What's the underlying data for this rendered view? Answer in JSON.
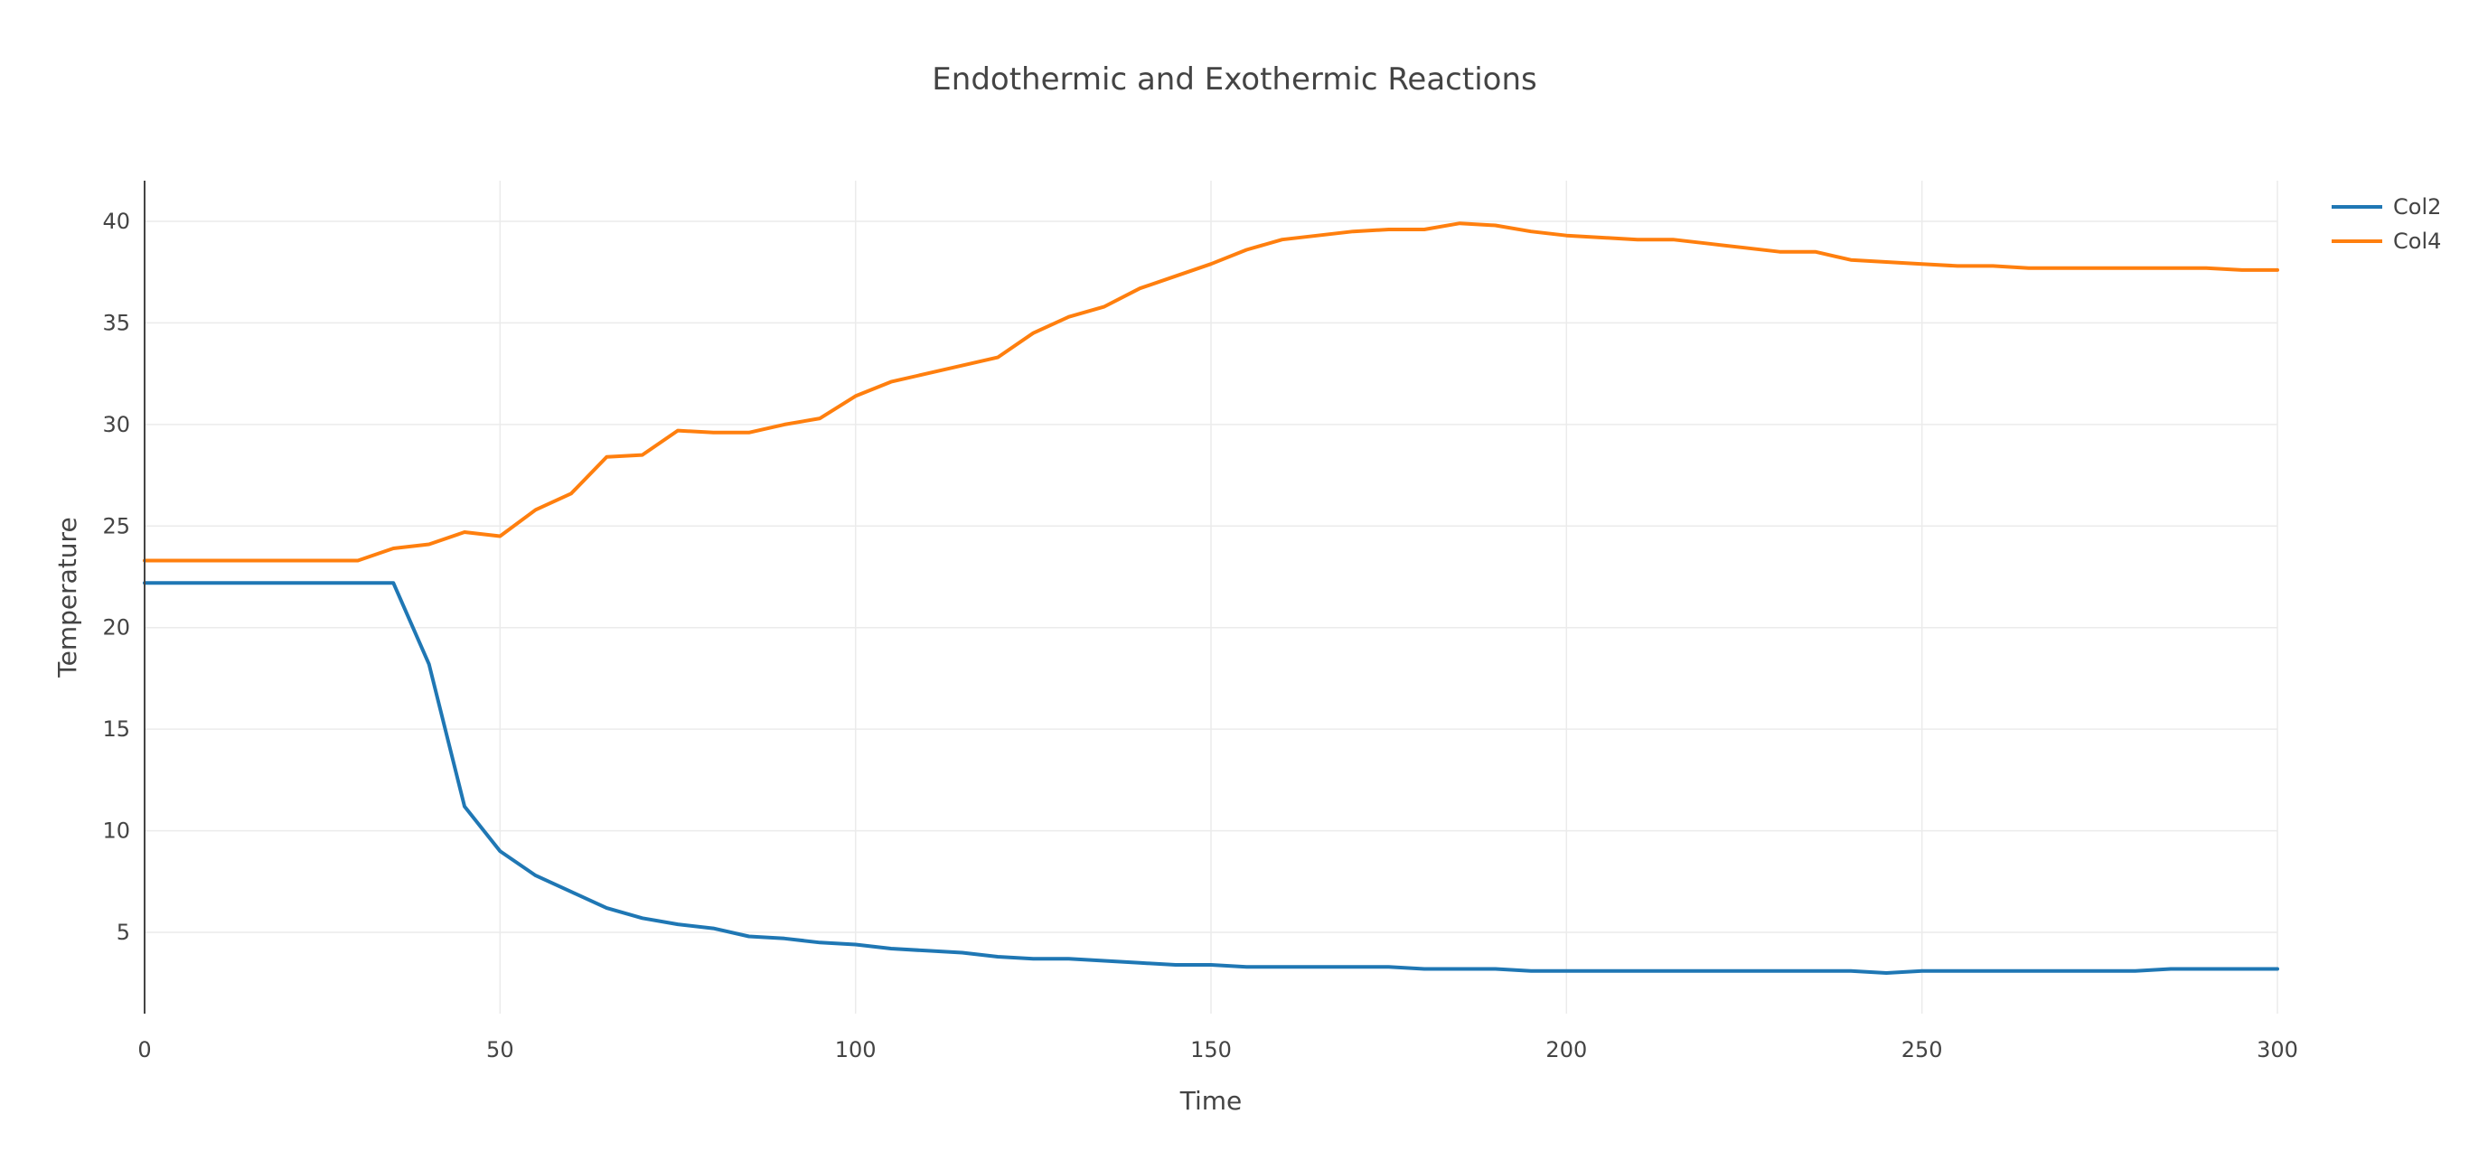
{
  "chart_data": {
    "type": "line",
    "title": "Endothermic and Exothermic Reactions",
    "xlabel": "Time",
    "ylabel": "Temperature",
    "xlim": [
      0,
      300
    ],
    "ylim": [
      1,
      42
    ],
    "xticks": [
      0,
      50,
      100,
      150,
      200,
      250,
      300
    ],
    "yticks": [
      5,
      10,
      15,
      20,
      25,
      30,
      35,
      40
    ],
    "grid": true,
    "legend_position": "top-right",
    "x": [
      0,
      5,
      10,
      15,
      20,
      25,
      30,
      35,
      40,
      45,
      50,
      55,
      60,
      65,
      70,
      75,
      80,
      85,
      90,
      95,
      100,
      105,
      110,
      115,
      120,
      125,
      130,
      135,
      140,
      145,
      150,
      155,
      160,
      165,
      170,
      175,
      180,
      185,
      190,
      195,
      200,
      205,
      210,
      215,
      220,
      225,
      230,
      235,
      240,
      245,
      250,
      255,
      260,
      265,
      270,
      275,
      280,
      285,
      290,
      295,
      300
    ],
    "series": [
      {
        "name": "Col2",
        "color": "#1f77b4",
        "values": [
          22.2,
          22.2,
          22.2,
          22.2,
          22.2,
          22.2,
          22.2,
          22.2,
          18.2,
          11.2,
          9.0,
          7.8,
          7.0,
          6.2,
          5.7,
          5.4,
          5.2,
          4.8,
          4.7,
          4.5,
          4.4,
          4.2,
          4.1,
          4.0,
          3.8,
          3.7,
          3.7,
          3.6,
          3.5,
          3.4,
          3.4,
          3.3,
          3.3,
          3.3,
          3.3,
          3.3,
          3.2,
          3.2,
          3.2,
          3.1,
          3.1,
          3.1,
          3.1,
          3.1,
          3.1,
          3.1,
          3.1,
          3.1,
          3.1,
          3.0,
          3.1,
          3.1,
          3.1,
          3.1,
          3.1,
          3.1,
          3.1,
          3.2,
          3.2,
          3.2,
          3.2
        ]
      },
      {
        "name": "Col4",
        "color": "#ff7f0e",
        "values": [
          23.3,
          23.3,
          23.3,
          23.3,
          23.3,
          23.3,
          23.3,
          23.9,
          24.1,
          24.7,
          24.5,
          25.8,
          26.6,
          28.4,
          28.5,
          29.7,
          29.6,
          29.6,
          30.0,
          30.3,
          31.4,
          32.1,
          32.5,
          32.9,
          33.3,
          34.5,
          35.3,
          35.8,
          36.7,
          37.3,
          37.9,
          38.6,
          39.1,
          39.3,
          39.5,
          39.6,
          39.6,
          39.9,
          39.8,
          39.5,
          39.3,
          39.2,
          39.1,
          39.1,
          38.9,
          38.7,
          38.5,
          38.5,
          38.1,
          38.0,
          37.9,
          37.8,
          37.8,
          37.7,
          37.7,
          37.7,
          37.7,
          37.7,
          37.7,
          37.6,
          37.6
        ]
      }
    ]
  }
}
